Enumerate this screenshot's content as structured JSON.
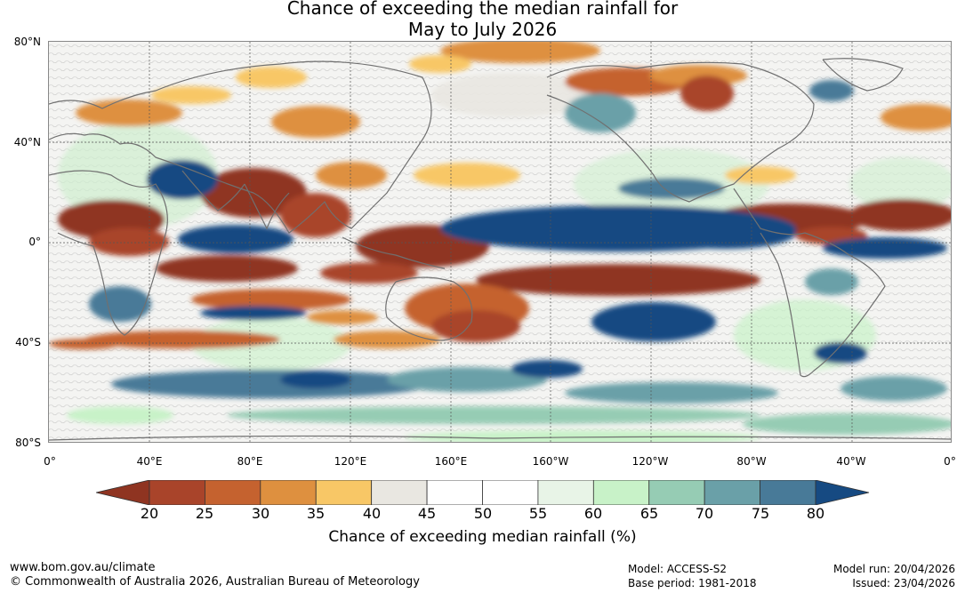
{
  "title_line1": "Chance of exceeding the median rainfall for",
  "title_line2": "May to July 2026",
  "lat_labels": [
    "80°N",
    "40°N",
    "0°",
    "40°S",
    "80°S"
  ],
  "lon_labels": [
    "0°",
    "40°E",
    "80°E",
    "120°E",
    "160°E",
    "160°W",
    "120°W",
    "80°W",
    "40°W",
    "0°"
  ],
  "colorbar": {
    "ticks": [
      "20",
      "25",
      "30",
      "35",
      "40",
      "45",
      "50",
      "55",
      "60",
      "65",
      "70",
      "75",
      "80"
    ],
    "colors": [
      "#a9442a",
      "#c5622f",
      "#de903f",
      "#f8c766",
      "#e9e7e1",
      "#ffffff",
      "#ffffff",
      "#e8f4e7",
      "#c8f2c8",
      "#96ccb4",
      "#6aa0a8",
      "#487a98"
    ],
    "below_color": "#8f3421",
    "above_color": "#164a82",
    "label": "Chance of exceeding median rainfall (%)"
  },
  "footer": {
    "website": "www.bom.gov.au/climate",
    "copyright": "© Commonwealth of Australia 2026, Australian Bureau of Meteorology",
    "model": "Model: ACCESS-S2",
    "base_period": "Base period: 1981-2018",
    "model_run": "Model run: 20/04/2026",
    "issued": "Issued: 23/04/2026"
  }
}
